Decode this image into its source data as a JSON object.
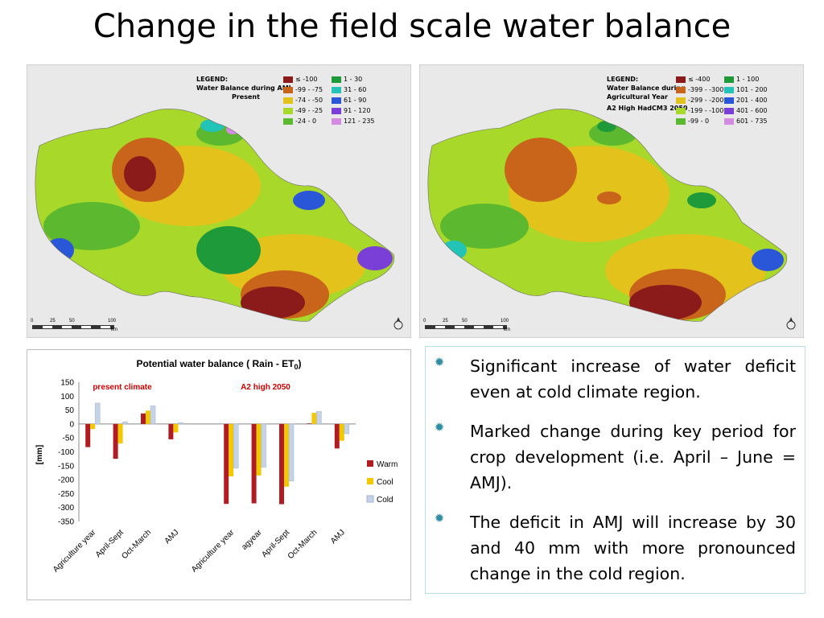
{
  "slide": {
    "title": "Change in the field scale water balance"
  },
  "map_left": {
    "legend_title_lines": [
      "LEGEND:",
      "Water Balance during AMJ",
      "Present"
    ],
    "legend_items": [
      {
        "label": "≤ -100",
        "color": "#8b1a1a"
      },
      {
        "label": "-99 - -75",
        "color": "#c8651b"
      },
      {
        "label": "-74 - -50",
        "color": "#e3c21c"
      },
      {
        "label": "-49 - -25",
        "color": "#a8d82a"
      },
      {
        "label": "-24 - 0",
        "color": "#5cb82e"
      },
      {
        "label": "1 - 30",
        "color": "#1f9a3a"
      },
      {
        "label": "31 - 60",
        "color": "#22c4b8"
      },
      {
        "label": "61 - 90",
        "color": "#2a56d8"
      },
      {
        "label": "91 - 120",
        "color": "#7a3fd6"
      },
      {
        "label": "121 - 235",
        "color": "#d48ce0"
      }
    ],
    "scale_labels": [
      "0",
      "25",
      "50",
      "100"
    ],
    "scale_unit": "km"
  },
  "map_right": {
    "legend_title_lines": [
      "LEGEND:",
      "Water Balance during",
      "Agricultural Year",
      "A2 High HadCM3 2050"
    ],
    "legend_items": [
      {
        "label": "≤ -400",
        "color": "#8b1a1a"
      },
      {
        "label": "-399 - -300",
        "color": "#c8651b"
      },
      {
        "label": "-299 - -200",
        "color": "#e3c21c"
      },
      {
        "label": "-199 - -100",
        "color": "#a8d82a"
      },
      {
        "label": "-99 - 0",
        "color": "#5cb82e"
      },
      {
        "label": "1 - 100",
        "color": "#1f9a3a"
      },
      {
        "label": "101 - 200",
        "color": "#22c4b8"
      },
      {
        "label": "201 - 400",
        "color": "#2a56d8"
      },
      {
        "label": "401 - 600",
        "color": "#7a3fd6"
      },
      {
        "label": "601 - 735",
        "color": "#d48ce0"
      }
    ],
    "scale_labels": [
      "0",
      "25",
      "50",
      "100"
    ],
    "scale_unit": "km"
  },
  "chart_data": {
    "type": "bar",
    "title": "Potential water balance ( Rain - ET",
    "title_subscript": "0",
    "title_suffix": ")",
    "ylabel": "[mm]",
    "ylim": [
      -350,
      150
    ],
    "yticks": [
      150,
      100,
      50,
      0,
      -50,
      -100,
      -150,
      -200,
      -250,
      -300,
      -350
    ],
    "group_labels": [
      "present climate",
      "A2 high 2050"
    ],
    "categories": [
      "Agriculture year",
      "April-Sept",
      "Oct-March",
      "AMJ",
      "",
      "Agriculture year",
      "agyear",
      "April-Sept",
      "Oct-March",
      "AMJ"
    ],
    "series": [
      {
        "name": "Warm",
        "color": "#b01c22",
        "values": [
          -83,
          -125,
          38,
          -55,
          null,
          -287,
          -285,
          -288,
          2,
          -88
        ]
      },
      {
        "name": "Cool",
        "color": "#f2c800",
        "values": [
          -18,
          -70,
          48,
          -30,
          null,
          -188,
          -185,
          -225,
          40,
          -60
        ]
      },
      {
        "name": "Cold",
        "color": "#c6d3e6",
        "values": [
          75,
          8,
          65,
          5,
          null,
          -158,
          -155,
          -205,
          45,
          -35
        ]
      }
    ],
    "legend_position": "right"
  },
  "bullets": [
    "Significant increase of water deficit even at cold climate region.",
    "Marked change during key period for crop development (i.e. April – June = AMJ).",
    "The deficit in AMJ will increase by 30 and 40 mm with more pronounced change in the cold region."
  ],
  "icons": {
    "bullet": "gear-bullet-icon",
    "north_arrow": "north-arrow-icon"
  }
}
